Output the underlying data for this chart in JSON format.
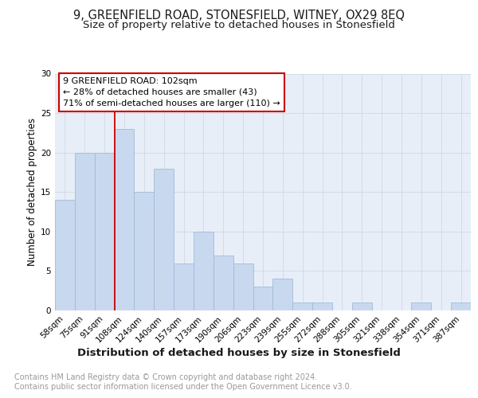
{
  "title": "9, GREENFIELD ROAD, STONESFIELD, WITNEY, OX29 8EQ",
  "subtitle": "Size of property relative to detached houses in Stonesfield",
  "xlabel": "Distribution of detached houses by size in Stonesfield",
  "ylabel": "Number of detached properties",
  "categories": [
    "58sqm",
    "75sqm",
    "91sqm",
    "108sqm",
    "124sqm",
    "140sqm",
    "157sqm",
    "173sqm",
    "190sqm",
    "206sqm",
    "223sqm",
    "239sqm",
    "255sqm",
    "272sqm",
    "288sqm",
    "305sqm",
    "321sqm",
    "338sqm",
    "354sqm",
    "371sqm",
    "387sqm"
  ],
  "values": [
    14,
    20,
    20,
    23,
    15,
    18,
    6,
    10,
    7,
    6,
    3,
    4,
    1,
    1,
    0,
    1,
    0,
    0,
    1,
    0,
    1
  ],
  "bar_color": "#c8d8ee",
  "bar_edge_color": "#a0bcd8",
  "grid_color": "#d0dce8",
  "background_color": "#e8eef8",
  "annotation_text_line1": "9 GREENFIELD ROAD: 102sqm",
  "annotation_text_line2": "← 28% of detached houses are smaller (43)",
  "annotation_text_line3": "71% of semi-detached houses are larger (110) →",
  "annotation_box_edgecolor": "#cc0000",
  "property_line_x": 2.5,
  "ylim_max": 30,
  "yticks": [
    0,
    5,
    10,
    15,
    20,
    25,
    30
  ],
  "footer_line1": "Contains HM Land Registry data © Crown copyright and database right 2024.",
  "footer_line2": "Contains public sector information licensed under the Open Government Licence v3.0.",
  "title_fontsize": 10.5,
  "subtitle_fontsize": 9.5,
  "ylabel_fontsize": 8.5,
  "xlabel_fontsize": 9.5,
  "tick_fontsize": 7.5,
  "annot_fontsize": 8,
  "footer_fontsize": 7
}
